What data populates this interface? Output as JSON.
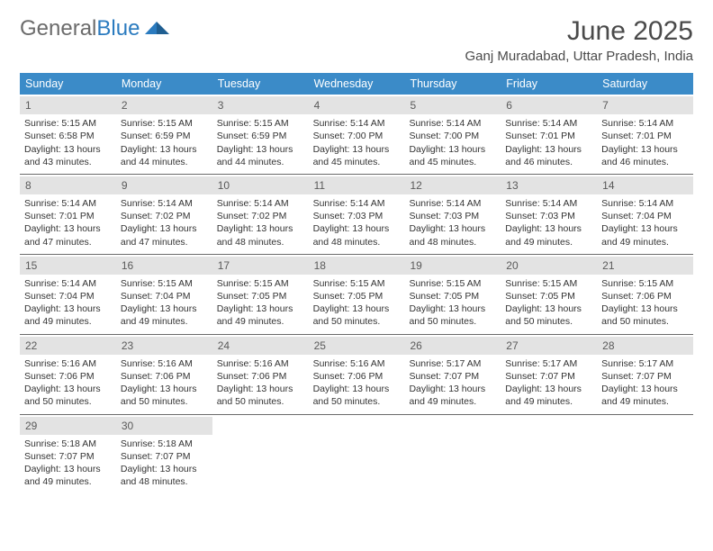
{
  "logo": {
    "text1": "General",
    "text2": "Blue"
  },
  "title": "June 2025",
  "location": "Ganj Muradabad, Uttar Pradesh, India",
  "colors": {
    "header_bar": "#3b8bc8",
    "daynum_bg": "#e3e3e3",
    "week_border": "#6b6b6b",
    "text": "#333333",
    "title_text": "#4a4a4a",
    "logo_gray": "#6b6b6b",
    "logo_blue": "#2b7bbf",
    "background": "#ffffff"
  },
  "weekdays": [
    "Sunday",
    "Monday",
    "Tuesday",
    "Wednesday",
    "Thursday",
    "Friday",
    "Saturday"
  ],
  "weeks": [
    [
      {
        "n": "1",
        "sunrise": "Sunrise: 5:15 AM",
        "sunset": "Sunset: 6:58 PM",
        "daylight": "Daylight: 13 hours and 43 minutes."
      },
      {
        "n": "2",
        "sunrise": "Sunrise: 5:15 AM",
        "sunset": "Sunset: 6:59 PM",
        "daylight": "Daylight: 13 hours and 44 minutes."
      },
      {
        "n": "3",
        "sunrise": "Sunrise: 5:15 AM",
        "sunset": "Sunset: 6:59 PM",
        "daylight": "Daylight: 13 hours and 44 minutes."
      },
      {
        "n": "4",
        "sunrise": "Sunrise: 5:14 AM",
        "sunset": "Sunset: 7:00 PM",
        "daylight": "Daylight: 13 hours and 45 minutes."
      },
      {
        "n": "5",
        "sunrise": "Sunrise: 5:14 AM",
        "sunset": "Sunset: 7:00 PM",
        "daylight": "Daylight: 13 hours and 45 minutes."
      },
      {
        "n": "6",
        "sunrise": "Sunrise: 5:14 AM",
        "sunset": "Sunset: 7:01 PM",
        "daylight": "Daylight: 13 hours and 46 minutes."
      },
      {
        "n": "7",
        "sunrise": "Sunrise: 5:14 AM",
        "sunset": "Sunset: 7:01 PM",
        "daylight": "Daylight: 13 hours and 46 minutes."
      }
    ],
    [
      {
        "n": "8",
        "sunrise": "Sunrise: 5:14 AM",
        "sunset": "Sunset: 7:01 PM",
        "daylight": "Daylight: 13 hours and 47 minutes."
      },
      {
        "n": "9",
        "sunrise": "Sunrise: 5:14 AM",
        "sunset": "Sunset: 7:02 PM",
        "daylight": "Daylight: 13 hours and 47 minutes."
      },
      {
        "n": "10",
        "sunrise": "Sunrise: 5:14 AM",
        "sunset": "Sunset: 7:02 PM",
        "daylight": "Daylight: 13 hours and 48 minutes."
      },
      {
        "n": "11",
        "sunrise": "Sunrise: 5:14 AM",
        "sunset": "Sunset: 7:03 PM",
        "daylight": "Daylight: 13 hours and 48 minutes."
      },
      {
        "n": "12",
        "sunrise": "Sunrise: 5:14 AM",
        "sunset": "Sunset: 7:03 PM",
        "daylight": "Daylight: 13 hours and 48 minutes."
      },
      {
        "n": "13",
        "sunrise": "Sunrise: 5:14 AM",
        "sunset": "Sunset: 7:03 PM",
        "daylight": "Daylight: 13 hours and 49 minutes."
      },
      {
        "n": "14",
        "sunrise": "Sunrise: 5:14 AM",
        "sunset": "Sunset: 7:04 PM",
        "daylight": "Daylight: 13 hours and 49 minutes."
      }
    ],
    [
      {
        "n": "15",
        "sunrise": "Sunrise: 5:14 AM",
        "sunset": "Sunset: 7:04 PM",
        "daylight": "Daylight: 13 hours and 49 minutes."
      },
      {
        "n": "16",
        "sunrise": "Sunrise: 5:15 AM",
        "sunset": "Sunset: 7:04 PM",
        "daylight": "Daylight: 13 hours and 49 minutes."
      },
      {
        "n": "17",
        "sunrise": "Sunrise: 5:15 AM",
        "sunset": "Sunset: 7:05 PM",
        "daylight": "Daylight: 13 hours and 49 minutes."
      },
      {
        "n": "18",
        "sunrise": "Sunrise: 5:15 AM",
        "sunset": "Sunset: 7:05 PM",
        "daylight": "Daylight: 13 hours and 50 minutes."
      },
      {
        "n": "19",
        "sunrise": "Sunrise: 5:15 AM",
        "sunset": "Sunset: 7:05 PM",
        "daylight": "Daylight: 13 hours and 50 minutes."
      },
      {
        "n": "20",
        "sunrise": "Sunrise: 5:15 AM",
        "sunset": "Sunset: 7:05 PM",
        "daylight": "Daylight: 13 hours and 50 minutes."
      },
      {
        "n": "21",
        "sunrise": "Sunrise: 5:15 AM",
        "sunset": "Sunset: 7:06 PM",
        "daylight": "Daylight: 13 hours and 50 minutes."
      }
    ],
    [
      {
        "n": "22",
        "sunrise": "Sunrise: 5:16 AM",
        "sunset": "Sunset: 7:06 PM",
        "daylight": "Daylight: 13 hours and 50 minutes."
      },
      {
        "n": "23",
        "sunrise": "Sunrise: 5:16 AM",
        "sunset": "Sunset: 7:06 PM",
        "daylight": "Daylight: 13 hours and 50 minutes."
      },
      {
        "n": "24",
        "sunrise": "Sunrise: 5:16 AM",
        "sunset": "Sunset: 7:06 PM",
        "daylight": "Daylight: 13 hours and 50 minutes."
      },
      {
        "n": "25",
        "sunrise": "Sunrise: 5:16 AM",
        "sunset": "Sunset: 7:06 PM",
        "daylight": "Daylight: 13 hours and 50 minutes."
      },
      {
        "n": "26",
        "sunrise": "Sunrise: 5:17 AM",
        "sunset": "Sunset: 7:07 PM",
        "daylight": "Daylight: 13 hours and 49 minutes."
      },
      {
        "n": "27",
        "sunrise": "Sunrise: 5:17 AM",
        "sunset": "Sunset: 7:07 PM",
        "daylight": "Daylight: 13 hours and 49 minutes."
      },
      {
        "n": "28",
        "sunrise": "Sunrise: 5:17 AM",
        "sunset": "Sunset: 7:07 PM",
        "daylight": "Daylight: 13 hours and 49 minutes."
      }
    ],
    [
      {
        "n": "29",
        "sunrise": "Sunrise: 5:18 AM",
        "sunset": "Sunset: 7:07 PM",
        "daylight": "Daylight: 13 hours and 49 minutes."
      },
      {
        "n": "30",
        "sunrise": "Sunrise: 5:18 AM",
        "sunset": "Sunset: 7:07 PM",
        "daylight": "Daylight: 13 hours and 48 minutes."
      },
      {
        "empty": true
      },
      {
        "empty": true
      },
      {
        "empty": true
      },
      {
        "empty": true
      },
      {
        "empty": true
      }
    ]
  ]
}
